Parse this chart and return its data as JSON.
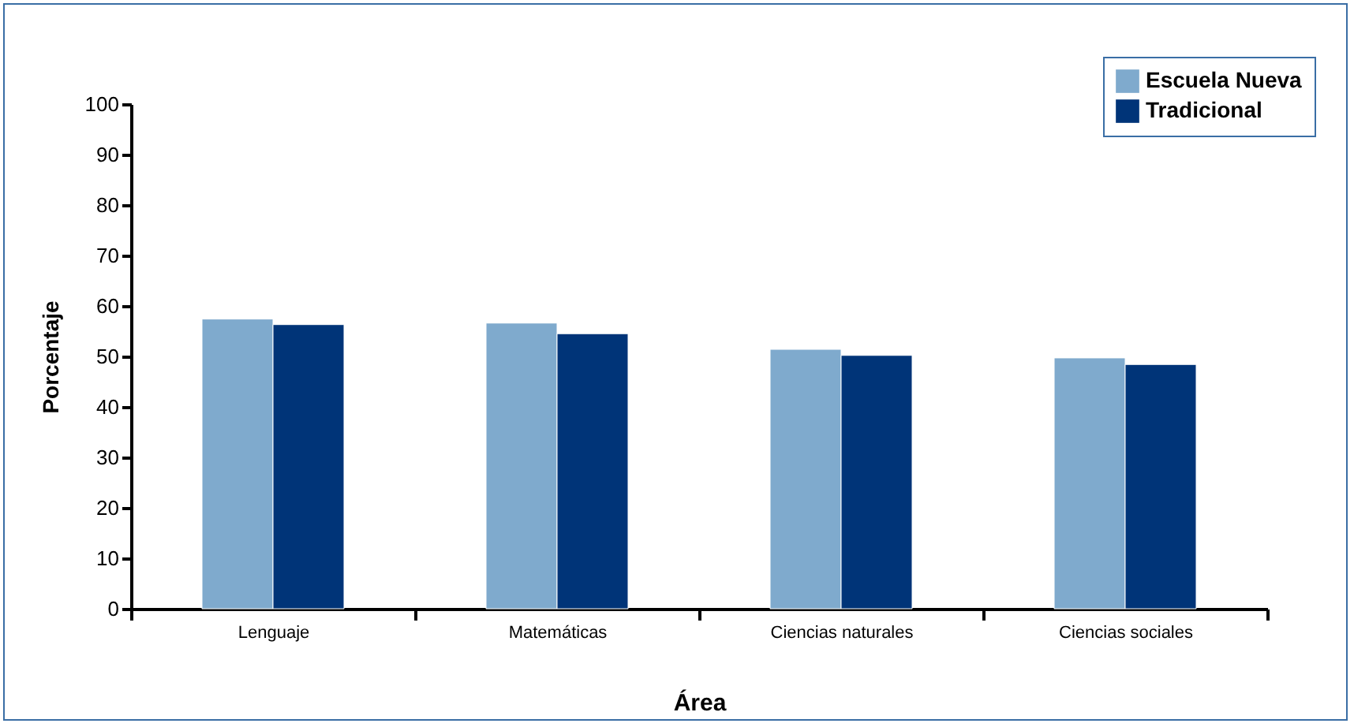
{
  "chart_data": {
    "type": "bar",
    "xlabel": "Área",
    "ylabel": "Porcentaje",
    "categories": [
      "Lenguaje",
      "Matemáticas",
      "Ciencias naturales",
      "Ciencias sociales"
    ],
    "series": [
      {
        "name": "Escuela Nueva",
        "color": "#7faacd",
        "values": [
          57.4,
          56.6,
          51.4,
          49.7
        ]
      },
      {
        "name": "Tradicional",
        "color": "#003478",
        "values": [
          56.3,
          54.5,
          50.2,
          48.4
        ]
      }
    ],
    "ylim": [
      0,
      100
    ],
    "yticks": [
      0,
      10,
      20,
      30,
      40,
      50,
      60,
      70,
      80,
      90,
      100
    ],
    "grid": false,
    "legend": "top right"
  }
}
